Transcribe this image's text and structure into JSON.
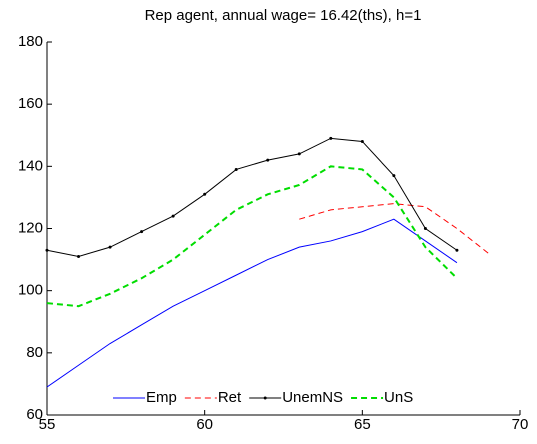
{
  "chart_data": {
    "type": "line",
    "title": "Rep agent, annual wage=  16.42(ths), h=1",
    "xlim": [
      55,
      70
    ],
    "xticks": [
      55,
      60,
      65,
      70
    ],
    "ylim": [
      60,
      180
    ],
    "yticks": [
      60,
      80,
      100,
      120,
      140,
      160,
      180
    ],
    "legend": "bottom",
    "series": [
      {
        "name": "Emp",
        "color": "#0000ff",
        "style": "solid",
        "x": [
          55,
          56,
          57,
          58,
          59,
          60,
          61,
          62,
          63,
          64,
          65,
          66,
          67,
          68
        ],
        "values": [
          69,
          76,
          83,
          89,
          95,
          100,
          105,
          110,
          114,
          116,
          119,
          123,
          116,
          109
        ]
      },
      {
        "name": "Ret",
        "color": "#ff0000",
        "style": "dashed",
        "x": [
          63,
          64,
          65,
          66,
          67,
          68,
          69
        ],
        "values": [
          123,
          126,
          127,
          128,
          127,
          120,
          112
        ]
      },
      {
        "name": "UnemNS",
        "color": "#000000",
        "style": "solid",
        "marker": "dot",
        "x": [
          55,
          56,
          57,
          58,
          59,
          60,
          61,
          62,
          63,
          64,
          65,
          66,
          67,
          68
        ],
        "values": [
          113,
          111,
          114,
          119,
          124,
          131,
          139,
          142,
          144,
          149,
          148,
          137,
          120,
          113
        ]
      },
      {
        "name": "UnS",
        "color": "#00dd00",
        "style": "thick-dashed",
        "x": [
          55,
          56,
          57,
          58,
          59,
          60,
          61,
          62,
          63,
          64,
          65,
          66,
          67,
          68
        ],
        "values": [
          96,
          95,
          99,
          104,
          110,
          118,
          126,
          131,
          134,
          140,
          139,
          130,
          114,
          104
        ]
      }
    ]
  }
}
